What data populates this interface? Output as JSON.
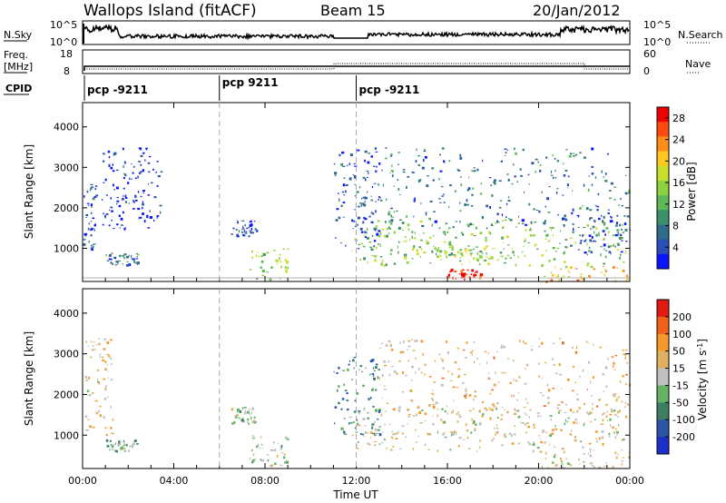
{
  "header": {
    "station": "Wallops Island (fitACF)",
    "beam": "Beam 15",
    "date": "20/Jan/2012"
  },
  "labels": {
    "nsky": "N.Sky",
    "nsearch": "N.Search",
    "freq_line1": "Freq.",
    "freq_line2": "[MHz]",
    "nave": "Nave",
    "cpid": "CPID",
    "tick_1e5": "10^5",
    "tick_1e0": "10^0",
    "freq_ticks": [
      "18",
      "8"
    ],
    "nave_ticks": [
      "60",
      "0"
    ]
  },
  "cpid_segments": [
    {
      "label": "pcp -9211",
      "start_hour": 0
    },
    {
      "label": "pcp 9211",
      "start_hour": 6
    },
    {
      "label": "pcp -9211",
      "start_hour": 12
    }
  ],
  "colors": {
    "line": "#000000",
    "dash": "#aaaaaa",
    "ground": "#b0b0b0"
  },
  "chart_data": [
    {
      "type": "heatmap",
      "panel": "power",
      "xlabel": "Time UT",
      "ylabel": "Slant Range [km]",
      "xlim": [
        0,
        24
      ],
      "ylim": [
        180,
        4600
      ],
      "yticks": [
        1000,
        2000,
        3000,
        4000
      ],
      "xticks": [
        "00:00",
        "04:00",
        "08:00",
        "12:00",
        "16:00",
        "20:00",
        "00:00"
      ],
      "colorbar": {
        "label": "Power [dB]",
        "range": [
          0,
          30
        ],
        "ticks": [
          4,
          8,
          12,
          16,
          20,
          24,
          28
        ],
        "colors": [
          "#0a14ff",
          "#2a4fb8",
          "#2f6b8a",
          "#3d8f6a",
          "#5fb858",
          "#8ed13f",
          "#c8de2a",
          "#ffc821",
          "#ff8c19",
          "#ff4a0f",
          "#ee0000"
        ]
      },
      "regions": [
        {
          "t": [
            0.0,
            0.6
          ],
          "r": [
            1000,
            2700
          ],
          "level": 0.15
        },
        {
          "t": [
            1.0,
            2.4
          ],
          "r": [
            600,
            900
          ],
          "level": 0.2
        },
        {
          "t": [
            0.8,
            3.5
          ],
          "r": [
            1500,
            3500
          ],
          "level": 0.05
        },
        {
          "t": [
            6.5,
            7.6
          ],
          "r": [
            1300,
            1700
          ],
          "level": 0.15
        },
        {
          "t": [
            7.3,
            9.0
          ],
          "r": [
            250,
            1000
          ],
          "level": 0.5
        },
        {
          "t": [
            11.0,
            13.0
          ],
          "r": [
            1000,
            3500
          ],
          "level": 0.15
        },
        {
          "t": [
            11.8,
            23.8
          ],
          "r": [
            600,
            1700
          ],
          "level": 0.45
        },
        {
          "t": [
            13.0,
            24.0
          ],
          "r": [
            1500,
            3500
          ],
          "level": 0.25
        },
        {
          "t": [
            15.5,
            18.0
          ],
          "r": [
            700,
            1100
          ],
          "level": 0.55
        },
        {
          "t": [
            16.0,
            17.5
          ],
          "r": [
            250,
            500
          ],
          "level": 0.95
        },
        {
          "t": [
            20.0,
            24.0
          ],
          "r": [
            200,
            600
          ],
          "level": 0.65
        },
        {
          "t": [
            21.0,
            24.0
          ],
          "r": [
            900,
            1900
          ],
          "level": 0.15
        }
      ]
    },
    {
      "type": "heatmap",
      "panel": "velocity",
      "xlabel": "Time UT",
      "ylabel": "Slant Range [km]",
      "xlim": [
        0,
        24
      ],
      "ylim": [
        180,
        4600
      ],
      "yticks": [
        1000,
        2000,
        3000,
        4000
      ],
      "xticks": [
        "00:00",
        "04:00",
        "08:00",
        "12:00",
        "16:00",
        "20:00",
        "00:00"
      ],
      "colorbar": {
        "label": "Velocity [m s^-1]",
        "tick_labels": [
          "200",
          "100",
          "50",
          "15",
          "-15",
          "-50",
          "-100",
          "-200"
        ],
        "colors": [
          "#1a2ec8",
          "#2a56a8",
          "#3e7f63",
          "#64b264",
          "#c0c0c0",
          "#e0b060",
          "#f59a2a",
          "#f06018",
          "#e01a10"
        ]
      },
      "regions": [
        {
          "t": [
            0.1,
            1.3
          ],
          "r": [
            1000,
            3400
          ],
          "level": 0.6
        },
        {
          "t": [
            1.0,
            2.4
          ],
          "r": [
            600,
            900
          ],
          "level": 0.4
        },
        {
          "t": [
            6.5,
            7.6
          ],
          "r": [
            1300,
            1700
          ],
          "level": 0.45
        },
        {
          "t": [
            7.3,
            9.0
          ],
          "r": [
            250,
            1000
          ],
          "level": 0.5
        },
        {
          "t": [
            11.0,
            13.0
          ],
          "r": [
            1000,
            3000
          ],
          "level": 0.3
        },
        {
          "t": [
            11.8,
            23.8
          ],
          "r": [
            600,
            1700
          ],
          "level": 0.55
        },
        {
          "t": [
            13.0,
            24.0
          ],
          "r": [
            1500,
            3400
          ],
          "level": 0.62
        },
        {
          "t": [
            20.0,
            24.0
          ],
          "r": [
            200,
            600
          ],
          "level": 0.55
        }
      ]
    }
  ]
}
